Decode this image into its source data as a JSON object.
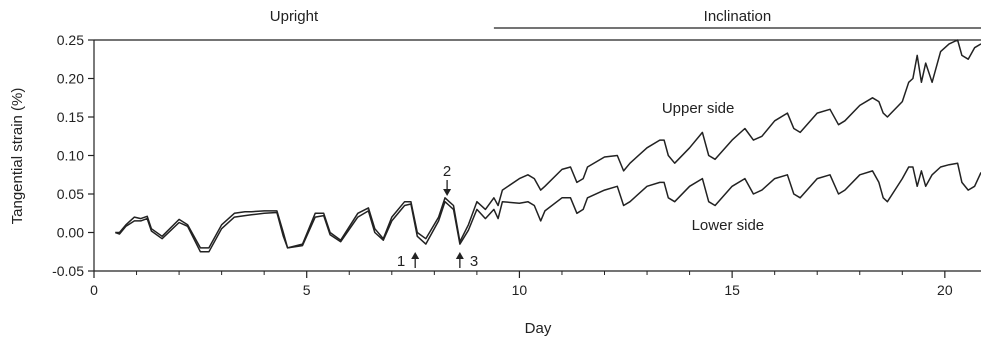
{
  "chart_data": {
    "type": "line",
    "title": "",
    "xlabel": "Day",
    "ylabel": "Tangential strain (%)",
    "xlim": [
      0,
      20.85
    ],
    "ylim": [
      -0.05,
      0.25
    ],
    "xticks": [
      0,
      5,
      10,
      15,
      20
    ],
    "yticks": [
      -0.05,
      0.0,
      0.05,
      0.1,
      0.15,
      0.2,
      0.25
    ],
    "ytick_labels": [
      "-0.05",
      "0.00",
      "0.05",
      "0.10",
      "0.15",
      "0.20",
      "0.25"
    ],
    "grid": false,
    "legend": "none",
    "periods": [
      {
        "label": "Upright",
        "x_start": 0,
        "x_end": 9.4
      },
      {
        "label": "Inclination",
        "x_start": 9.4,
        "x_end": 20.85
      }
    ],
    "series": [
      {
        "name": "Upper side",
        "color": "#222222",
        "x": [
          0.5,
          0.6,
          0.75,
          0.95,
          1.1,
          1.25,
          1.35,
          1.6,
          2.0,
          2.2,
          2.5,
          2.7,
          3.0,
          3.3,
          3.55,
          3.7,
          4.0,
          4.3,
          4.45,
          4.55,
          4.9,
          5.2,
          5.4,
          5.55,
          5.8,
          6.2,
          6.45,
          6.6,
          6.8,
          7.0,
          7.3,
          7.45,
          7.6,
          7.8,
          8.1,
          8.25,
          8.35,
          8.45,
          8.6,
          8.8,
          9.0,
          9.2,
          9.4,
          9.5,
          9.6,
          10.0,
          10.2,
          10.35,
          10.5,
          10.6,
          11.0,
          11.2,
          11.35,
          11.5,
          11.6,
          12.0,
          12.3,
          12.45,
          12.6,
          13.0,
          13.3,
          13.4,
          13.5,
          13.65,
          14.0,
          14.3,
          14.45,
          14.6,
          15.0,
          15.3,
          15.5,
          15.7,
          16.0,
          16.3,
          16.45,
          16.6,
          17.0,
          17.3,
          17.5,
          17.65,
          18.0,
          18.3,
          18.45,
          18.55,
          18.65,
          19.0,
          19.15,
          19.25,
          19.35,
          19.45,
          19.55,
          19.7,
          19.9,
          20.1,
          20.3,
          20.4,
          20.55,
          20.7,
          20.85
        ],
        "y": [
          0.0,
          0.0,
          0.01,
          0.02,
          0.018,
          0.021,
          0.005,
          -0.005,
          0.017,
          0.01,
          -0.02,
          -0.02,
          0.01,
          0.025,
          0.027,
          0.027,
          0.028,
          0.028,
          0.0,
          -0.02,
          -0.015,
          0.025,
          0.025,
          0.0,
          -0.01,
          0.025,
          0.032,
          0.005,
          -0.008,
          0.02,
          0.04,
          0.04,
          0.0,
          -0.008,
          0.02,
          0.045,
          0.04,
          0.035,
          -0.012,
          0.01,
          0.04,
          0.03,
          0.045,
          0.035,
          0.055,
          0.07,
          0.075,
          0.07,
          0.055,
          0.06,
          0.082,
          0.085,
          0.065,
          0.07,
          0.085,
          0.098,
          0.1,
          0.08,
          0.09,
          0.11,
          0.12,
          0.12,
          0.1,
          0.09,
          0.11,
          0.13,
          0.1,
          0.095,
          0.12,
          0.135,
          0.12,
          0.125,
          0.145,
          0.155,
          0.135,
          0.13,
          0.155,
          0.16,
          0.14,
          0.145,
          0.165,
          0.175,
          0.17,
          0.155,
          0.15,
          0.17,
          0.195,
          0.2,
          0.23,
          0.195,
          0.22,
          0.195,
          0.235,
          0.245,
          0.25,
          0.23,
          0.225,
          0.24,
          0.245
        ]
      },
      {
        "name": "Lower side",
        "color": "#222222",
        "x": [
          0.5,
          0.6,
          0.75,
          0.95,
          1.1,
          1.25,
          1.35,
          1.6,
          2.0,
          2.2,
          2.5,
          2.7,
          3.0,
          3.3,
          3.55,
          3.7,
          4.0,
          4.3,
          4.45,
          4.55,
          4.9,
          5.2,
          5.4,
          5.55,
          5.8,
          6.2,
          6.45,
          6.6,
          6.8,
          7.0,
          7.3,
          7.45,
          7.6,
          7.8,
          8.1,
          8.25,
          8.35,
          8.45,
          8.6,
          8.8,
          9.0,
          9.2,
          9.4,
          9.5,
          9.6,
          10.0,
          10.2,
          10.35,
          10.5,
          10.6,
          11.0,
          11.2,
          11.35,
          11.5,
          11.6,
          12.0,
          12.3,
          12.45,
          12.6,
          13.0,
          13.3,
          13.4,
          13.5,
          13.65,
          14.0,
          14.3,
          14.45,
          14.6,
          15.0,
          15.3,
          15.5,
          15.7,
          16.0,
          16.3,
          16.45,
          16.6,
          17.0,
          17.3,
          17.5,
          17.65,
          18.0,
          18.3,
          18.45,
          18.55,
          18.65,
          19.0,
          19.15,
          19.25,
          19.35,
          19.45,
          19.55,
          19.7,
          19.9,
          20.1,
          20.3,
          20.4,
          20.55,
          20.7,
          20.85
        ],
        "y": [
          0.0,
          -0.002,
          0.008,
          0.015,
          0.015,
          0.018,
          0.002,
          -0.008,
          0.013,
          0.008,
          -0.025,
          -0.025,
          0.005,
          0.02,
          0.022,
          0.023,
          0.025,
          0.026,
          -0.005,
          -0.02,
          -0.017,
          0.02,
          0.022,
          -0.003,
          -0.012,
          0.02,
          0.028,
          0.0,
          -0.01,
          0.015,
          0.035,
          0.037,
          -0.005,
          -0.015,
          0.015,
          0.04,
          0.035,
          0.03,
          -0.015,
          0.003,
          0.03,
          0.018,
          0.03,
          0.018,
          0.04,
          0.038,
          0.04,
          0.035,
          0.015,
          0.028,
          0.045,
          0.045,
          0.025,
          0.03,
          0.045,
          0.055,
          0.06,
          0.035,
          0.04,
          0.06,
          0.065,
          0.065,
          0.045,
          0.04,
          0.06,
          0.07,
          0.04,
          0.035,
          0.06,
          0.07,
          0.05,
          0.055,
          0.07,
          0.075,
          0.05,
          0.045,
          0.07,
          0.075,
          0.05,
          0.055,
          0.075,
          0.08,
          0.065,
          0.045,
          0.04,
          0.07,
          0.085,
          0.085,
          0.06,
          0.08,
          0.06,
          0.075,
          0.085,
          0.088,
          0.09,
          0.065,
          0.055,
          0.06,
          0.078
        ]
      }
    ],
    "annotations": [
      {
        "text": "Upper side",
        "x": 14.2,
        "y": 0.155
      },
      {
        "text": "Lower side",
        "x": 14.9,
        "y": 0.003
      }
    ],
    "markers": [
      {
        "label": "1",
        "x": 7.55,
        "direction": "up",
        "side": "left"
      },
      {
        "label": "2",
        "x": 8.3,
        "direction": "down",
        "side": "center"
      },
      {
        "label": "3",
        "x": 8.6,
        "direction": "up",
        "side": "right"
      }
    ]
  }
}
